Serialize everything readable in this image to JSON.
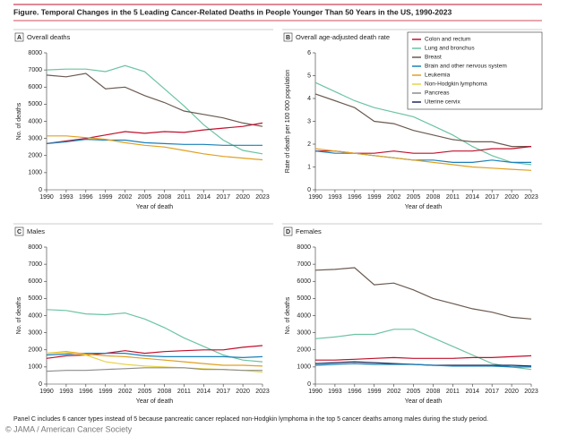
{
  "title": "Figure. Temporal Changes in the 5 Leading Cancer-Related Deaths in People Younger Than 50 Years in the US, 1990-2023",
  "footnote": "Panel C includes 6 cancer types instead of 5 because pancreatic cancer replaced non-Hodgkin lymphoma in the top 5 cancer deaths among males during the study period.",
  "credit": "© JAMA / American Cancer Society",
  "legend": [
    {
      "name": "Colon and rectum",
      "color": "#c0102c"
    },
    {
      "name": "Lung and bronchus",
      "color": "#6cc3a3"
    },
    {
      "name": "Breast",
      "color": "#6b5a50"
    },
    {
      "name": "Brain and other nervous system",
      "color": "#1a80b8"
    },
    {
      "name": "Leukemia",
      "color": "#e0a020"
    },
    {
      "name": "Non-Hodgkin lymphoma",
      "color": "#e6d44a"
    },
    {
      "name": "Pancreas",
      "color": "#8c8c8c"
    },
    {
      "name": "Uterine cervix",
      "color": "#1b2a5a"
    }
  ],
  "chart_data": [
    {
      "type": "line",
      "panel": "A",
      "title": "Overall deaths",
      "xlabel": "Year of death",
      "ylabel": "No. of deaths",
      "x": [
        1990,
        1993,
        1996,
        1999,
        2002,
        2005,
        2008,
        2011,
        2014,
        2017,
        2020,
        2023
      ],
      "xlim": [
        1990,
        2023
      ],
      "xticks": [
        1990,
        1993,
        1996,
        1999,
        2002,
        2005,
        2008,
        2011,
        2014,
        2017,
        2020,
        2023
      ],
      "ylim": [
        0,
        8000
      ],
      "yticks": [
        0,
        1000,
        2000,
        3000,
        4000,
        5000,
        6000,
        7000,
        8000
      ],
      "series": [
        {
          "name": "Lung and bronchus",
          "color": "#6cc3a3",
          "values": [
            7000,
            7050,
            7050,
            6900,
            7250,
            6900,
            5900,
            4900,
            3800,
            2900,
            2300,
            2100
          ]
        },
        {
          "name": "Breast",
          "color": "#6b5a50",
          "values": [
            6700,
            6600,
            6800,
            5900,
            6000,
            5500,
            5100,
            4600,
            4400,
            4200,
            3900,
            3700
          ]
        },
        {
          "name": "Colon and rectum",
          "color": "#c0102c",
          "values": [
            2700,
            2850,
            3000,
            3200,
            3400,
            3300,
            3400,
            3350,
            3500,
            3600,
            3700,
            3900
          ]
        },
        {
          "name": "Brain and other nervous system",
          "color": "#1a80b8",
          "values": [
            2700,
            2800,
            2950,
            2900,
            2900,
            2750,
            2700,
            2650,
            2650,
            2600,
            2600,
            2600
          ]
        },
        {
          "name": "Leukemia",
          "color": "#e0a020",
          "values": [
            3150,
            3150,
            3050,
            2950,
            2750,
            2600,
            2500,
            2300,
            2100,
            1950,
            1850,
            1750
          ]
        }
      ]
    },
    {
      "type": "line",
      "panel": "B",
      "title": "Overall age-adjusted death rate",
      "xlabel": "Year of death",
      "ylabel": "Rate of death per 100 000 population",
      "x": [
        1990,
        1993,
        1996,
        1999,
        2002,
        2005,
        2008,
        2011,
        2014,
        2017,
        2020,
        2023
      ],
      "xlim": [
        1990,
        2023
      ],
      "xticks": [
        1990,
        1993,
        1996,
        1999,
        2002,
        2005,
        2008,
        2011,
        2014,
        2017,
        2020,
        2023
      ],
      "ylim": [
        0,
        6
      ],
      "yticks": [
        0,
        1,
        2,
        3,
        4,
        5,
        6
      ],
      "series": [
        {
          "name": "Lung and bronchus",
          "color": "#6cc3a3",
          "values": [
            4.7,
            4.3,
            3.9,
            3.6,
            3.4,
            3.2,
            2.8,
            2.4,
            1.9,
            1.5,
            1.2,
            1.1
          ]
        },
        {
          "name": "Breast",
          "color": "#6b5a50",
          "values": [
            4.2,
            3.9,
            3.6,
            3.0,
            2.9,
            2.6,
            2.4,
            2.2,
            2.1,
            2.1,
            1.9,
            1.9
          ]
        },
        {
          "name": "Colon and rectum",
          "color": "#c0102c",
          "values": [
            1.7,
            1.7,
            1.6,
            1.6,
            1.7,
            1.6,
            1.6,
            1.7,
            1.7,
            1.8,
            1.8,
            1.9
          ]
        },
        {
          "name": "Brain and other nervous system",
          "color": "#1a80b8",
          "values": [
            1.7,
            1.6,
            1.6,
            1.5,
            1.4,
            1.3,
            1.3,
            1.2,
            1.2,
            1.3,
            1.2,
            1.2
          ]
        },
        {
          "name": "Leukemia",
          "color": "#e0a020",
          "values": [
            1.8,
            1.7,
            1.6,
            1.5,
            1.4,
            1.3,
            1.2,
            1.1,
            1.0,
            0.95,
            0.9,
            0.85
          ]
        }
      ]
    },
    {
      "type": "line",
      "panel": "C",
      "title": "Males",
      "xlabel": "Year of death",
      "ylabel": "No. of deaths",
      "x": [
        1990,
        1993,
        1996,
        1999,
        2002,
        2005,
        2008,
        2011,
        2014,
        2017,
        2020,
        2023
      ],
      "xlim": [
        1990,
        2023
      ],
      "xticks": [
        1990,
        1993,
        1996,
        1999,
        2002,
        2005,
        2008,
        2011,
        2014,
        2017,
        2020,
        2023
      ],
      "ylim": [
        0,
        8000
      ],
      "yticks": [
        0,
        1000,
        2000,
        3000,
        4000,
        5000,
        6000,
        7000,
        8000
      ],
      "series": [
        {
          "name": "Lung and bronchus",
          "color": "#6cc3a3",
          "values": [
            4350,
            4300,
            4100,
            4050,
            4150,
            3800,
            3300,
            2700,
            2200,
            1700,
            1400,
            1300
          ]
        },
        {
          "name": "Colon and rectum",
          "color": "#c0102c",
          "values": [
            1500,
            1650,
            1700,
            1800,
            1950,
            1800,
            1900,
            1950,
            2000,
            2000,
            2150,
            2250
          ]
        },
        {
          "name": "Brain and other nervous system",
          "color": "#1a80b8",
          "values": [
            1700,
            1750,
            1800,
            1800,
            1800,
            1650,
            1600,
            1600,
            1600,
            1600,
            1550,
            1600
          ]
        },
        {
          "name": "Leukemia",
          "color": "#e0a020",
          "values": [
            1800,
            1900,
            1750,
            1650,
            1600,
            1500,
            1400,
            1300,
            1200,
            1100,
            1100,
            1050
          ]
        },
        {
          "name": "Non-Hodgkin lymphoma",
          "color": "#e6d44a",
          "values": [
            1800,
            1850,
            1700,
            1300,
            1150,
            1050,
            1000,
            950,
            900,
            850,
            800,
            700
          ]
        },
        {
          "name": "Pancreas",
          "color": "#8c8c8c",
          "values": [
            750,
            800,
            800,
            850,
            900,
            950,
            950,
            950,
            850,
            850,
            800,
            800
          ]
        }
      ]
    },
    {
      "type": "line",
      "panel": "D",
      "title": "Females",
      "xlabel": "Year of death",
      "ylabel": "No. of deaths",
      "x": [
        1990,
        1993,
        1996,
        1999,
        2002,
        2005,
        2008,
        2011,
        2014,
        2017,
        2020,
        2023
      ],
      "xlim": [
        1990,
        2023
      ],
      "xticks": [
        1990,
        1993,
        1996,
        1999,
        2002,
        2005,
        2008,
        2011,
        2014,
        2017,
        2020,
        2023
      ],
      "ylim": [
        0,
        8000
      ],
      "yticks": [
        0,
        1000,
        2000,
        3000,
        4000,
        5000,
        6000,
        7000,
        8000
      ],
      "series": [
        {
          "name": "Breast",
          "color": "#6b5a50",
          "values": [
            6650,
            6700,
            6800,
            5800,
            5900,
            5500,
            5000,
            4700,
            4400,
            4200,
            3900,
            3800
          ]
        },
        {
          "name": "Lung and bronchus",
          "color": "#6cc3a3",
          "values": [
            2650,
            2750,
            2900,
            2900,
            3200,
            3200,
            2700,
            2200,
            1700,
            1200,
            1000,
            850
          ]
        },
        {
          "name": "Colon and rectum",
          "color": "#c0102c",
          "values": [
            1400,
            1400,
            1450,
            1500,
            1550,
            1500,
            1500,
            1500,
            1550,
            1550,
            1600,
            1650
          ]
        },
        {
          "name": "Uterine cervix",
          "color": "#1b2a5a",
          "values": [
            1200,
            1250,
            1300,
            1250,
            1200,
            1150,
            1100,
            1100,
            1100,
            1100,
            1100,
            1050
          ]
        },
        {
          "name": "Brain and other nervous system",
          "color": "#1a80b8",
          "values": [
            1100,
            1150,
            1200,
            1150,
            1150,
            1150,
            1100,
            1050,
            1050,
            1050,
            1000,
            1000
          ]
        }
      ]
    }
  ]
}
